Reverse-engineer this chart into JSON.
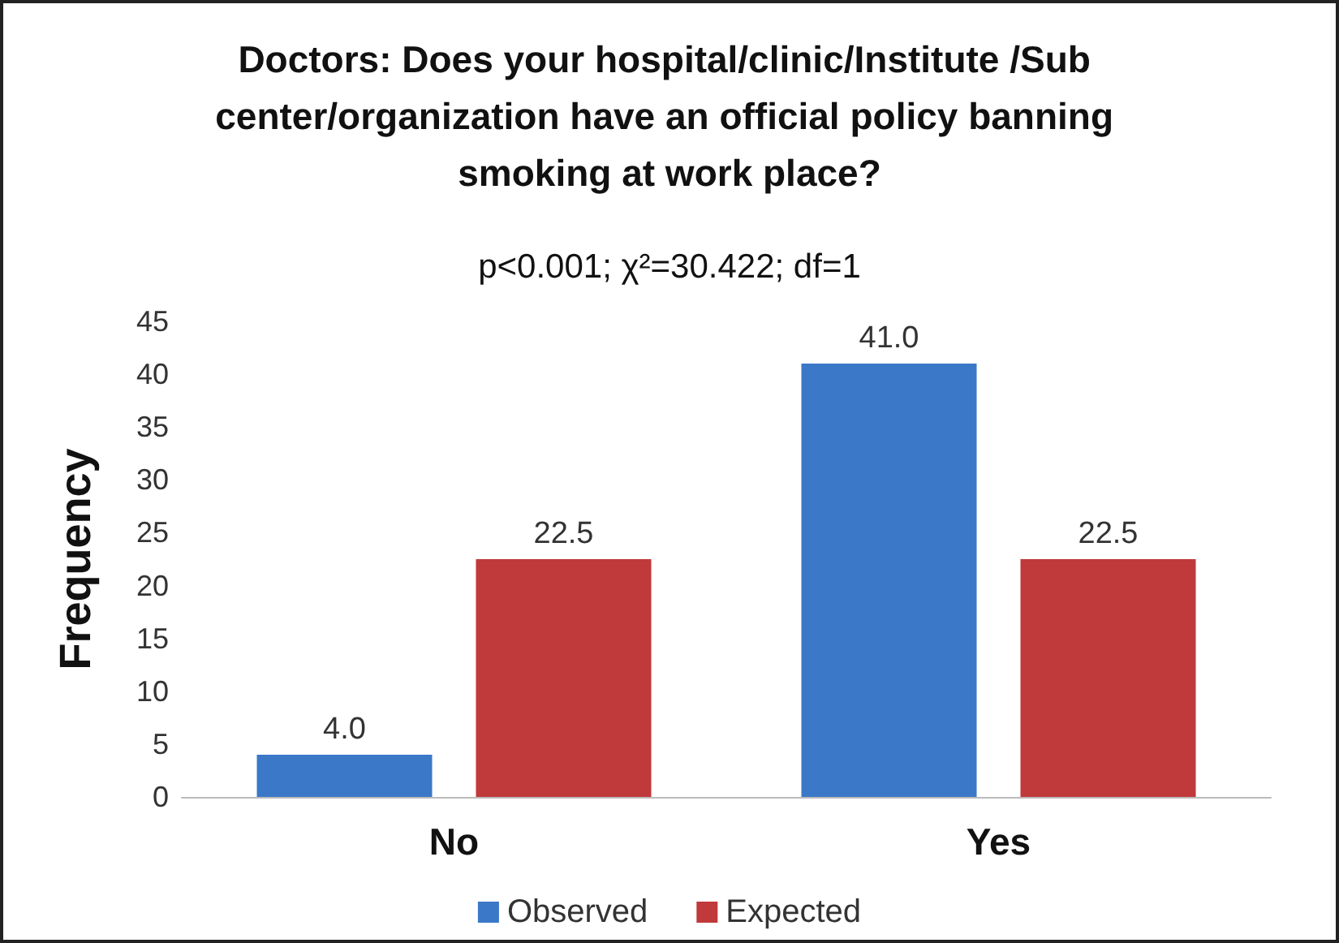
{
  "chart_data": {
    "type": "bar",
    "title": "Doctors: Does your hospital/clinic/Institute /Sub center/organization have an official policy banning smoking at work place?",
    "subtitle": "p<0.001; χ²=30.422; df=1",
    "ylabel": "Frequency",
    "categories": [
      "No",
      "Yes"
    ],
    "series": [
      {
        "name": "Observed",
        "color": "#3b78c8",
        "values": [
          4.0,
          41.0
        ],
        "value_labels": [
          "4.0",
          "41.0"
        ]
      },
      {
        "name": "Expected",
        "color": "#c0393b",
        "values": [
          22.5,
          22.5
        ],
        "value_labels": [
          "22.5",
          "22.5"
        ]
      }
    ],
    "ylim": [
      0,
      45
    ],
    "yticks": [
      0,
      5,
      10,
      15,
      20,
      25,
      30,
      35,
      40,
      45
    ],
    "grid": false,
    "legend": "bottom"
  }
}
